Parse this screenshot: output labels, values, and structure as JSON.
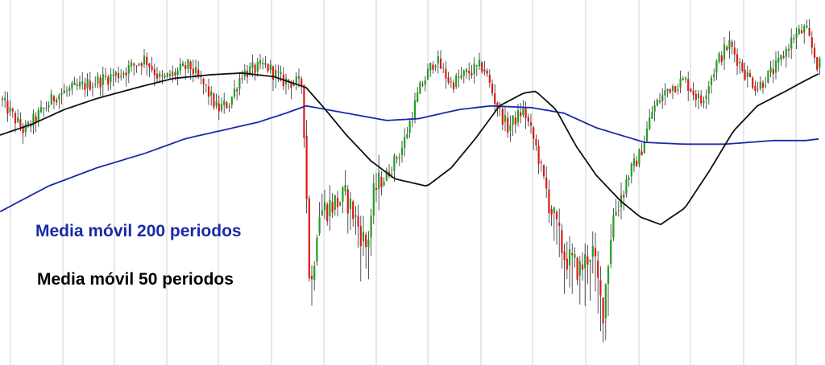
{
  "chart_data": {
    "type": "candlestick",
    "grid": {
      "vertical": true,
      "horizontal": false
    },
    "y_range": [
      0,
      100
    ],
    "colors": {
      "up": "#1fa01f",
      "down": "#e01818",
      "wick": "#2b2b2b",
      "grid": "#d2d2d2"
    },
    "price_anchors": [
      [
        0,
        73
      ],
      [
        30,
        64
      ],
      [
        70,
        74
      ],
      [
        110,
        77
      ],
      [
        150,
        80
      ],
      [
        180,
        84
      ],
      [
        200,
        78
      ],
      [
        235,
        82
      ],
      [
        255,
        76
      ],
      [
        270,
        70
      ],
      [
        285,
        72
      ],
      [
        300,
        80
      ],
      [
        330,
        82
      ],
      [
        350,
        78
      ],
      [
        375,
        77
      ],
      [
        380,
        50
      ],
      [
        385,
        18
      ],
      [
        395,
        42
      ],
      [
        430,
        46
      ],
      [
        445,
        38
      ],
      [
        455,
        32
      ],
      [
        465,
        48
      ],
      [
        480,
        52
      ],
      [
        500,
        60
      ],
      [
        520,
        75
      ],
      [
        540,
        84
      ],
      [
        560,
        77
      ],
      [
        580,
        80
      ],
      [
        600,
        82
      ],
      [
        615,
        72
      ],
      [
        630,
        65
      ],
      [
        650,
        70
      ],
      [
        665,
        60
      ],
      [
        680,
        46
      ],
      [
        700,
        30
      ],
      [
        720,
        26
      ],
      [
        735,
        32
      ],
      [
        748,
        14
      ],
      [
        760,
        40
      ],
      [
        780,
        52
      ],
      [
        795,
        58
      ],
      [
        810,
        70
      ],
      [
        830,
        76
      ],
      [
        850,
        78
      ],
      [
        870,
        72
      ],
      [
        890,
        83
      ],
      [
        905,
        88
      ],
      [
        925,
        80
      ],
      [
        940,
        76
      ],
      [
        965,
        82
      ],
      [
        985,
        90
      ],
      [
        1000,
        92
      ],
      [
        1015,
        82
      ]
    ],
    "series": [
      {
        "name": "Media móvil 200 periodos",
        "color": "#1a2aa8",
        "points": [
          [
            0,
            42
          ],
          [
            60,
            49
          ],
          [
            120,
            54
          ],
          [
            180,
            58
          ],
          [
            230,
            62
          ],
          [
            280,
            64.5
          ],
          [
            320,
            66.5
          ],
          [
            355,
            69
          ],
          [
            380,
            71
          ],
          [
            430,
            69
          ],
          [
            480,
            67
          ],
          [
            520,
            67.5
          ],
          [
            570,
            70
          ],
          [
            610,
            71
          ],
          [
            660,
            70.5
          ],
          [
            700,
            69
          ],
          [
            740,
            65
          ],
          [
            800,
            61
          ],
          [
            850,
            60.5
          ],
          [
            900,
            60.5
          ],
          [
            960,
            61.5
          ],
          [
            1000,
            61.5
          ],
          [
            1018,
            62
          ]
        ]
      },
      {
        "name": "Media móvil 50 periodos",
        "color": "#111111",
        "points": [
          [
            0,
            63
          ],
          [
            40,
            66
          ],
          [
            80,
            70
          ],
          [
            120,
            73
          ],
          [
            170,
            76
          ],
          [
            215,
            78.5
          ],
          [
            260,
            79.5
          ],
          [
            300,
            80
          ],
          [
            340,
            79
          ],
          [
            380,
            76
          ],
          [
            400,
            71
          ],
          [
            430,
            63
          ],
          [
            460,
            56
          ],
          [
            490,
            51
          ],
          [
            530,
            49
          ],
          [
            560,
            54
          ],
          [
            590,
            62
          ],
          [
            620,
            71
          ],
          [
            650,
            74.5
          ],
          [
            665,
            75
          ],
          [
            690,
            70
          ],
          [
            715,
            60
          ],
          [
            740,
            52
          ],
          [
            770,
            45
          ],
          [
            795,
            40.5
          ],
          [
            820,
            38.5
          ],
          [
            850,
            43
          ],
          [
            880,
            53
          ],
          [
            910,
            64
          ],
          [
            940,
            71
          ],
          [
            975,
            75
          ],
          [
            1000,
            78
          ],
          [
            1018,
            80
          ]
        ]
      }
    ],
    "annotations": [
      {
        "text": "Media móvil 200 periodos",
        "color": "#1a2aa8"
      },
      {
        "text": "Media móvil 50 periodos",
        "color": "#000000"
      }
    ]
  }
}
